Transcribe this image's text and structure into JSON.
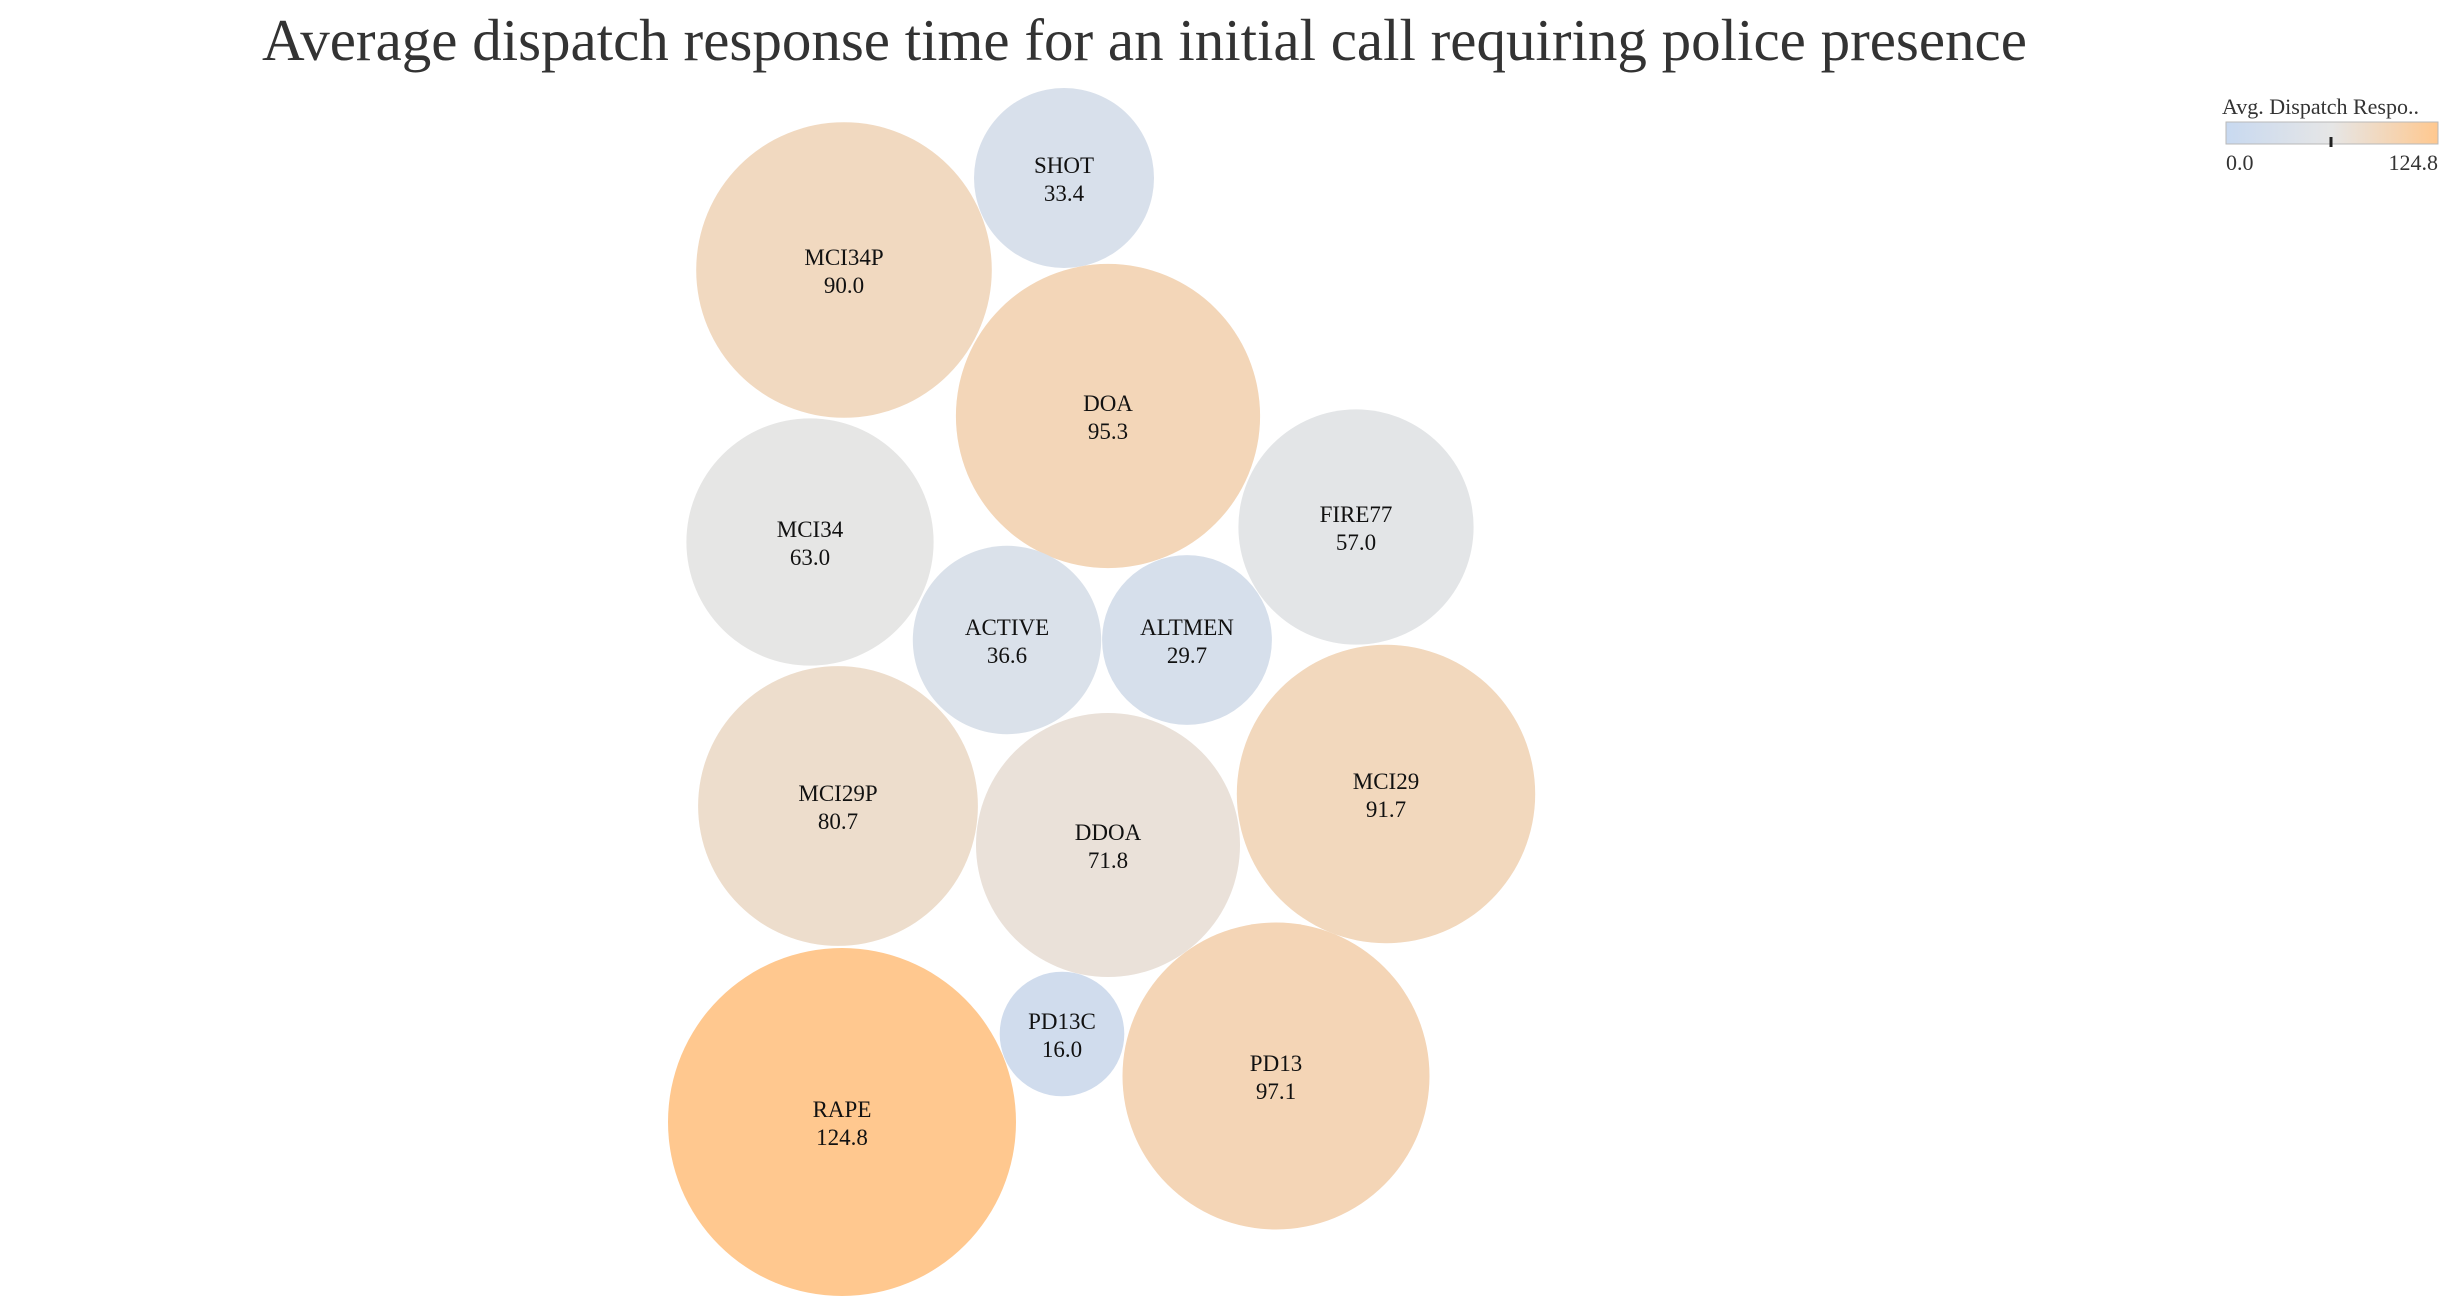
{
  "chart_data": {
    "type": "bubble",
    "title": "Average dispatch response time for an initial call requiring police presence",
    "items": [
      {
        "label": "SHOT",
        "value": 33.4,
        "display": "33.4"
      },
      {
        "label": "MCI34P",
        "value": 90.0,
        "display": "90.0"
      },
      {
        "label": "DOA",
        "value": 95.3,
        "display": "95.3"
      },
      {
        "label": "MCI34",
        "value": 63.0,
        "display": "63.0"
      },
      {
        "label": "FIRE77",
        "value": 57.0,
        "display": "57.0"
      },
      {
        "label": "ACTIVE",
        "value": 36.6,
        "display": "36.6"
      },
      {
        "label": "ALTMEN",
        "value": 29.7,
        "display": "29.7"
      },
      {
        "label": "MCI29P",
        "value": 80.7,
        "display": "80.7"
      },
      {
        "label": "DDOA",
        "value": 71.8,
        "display": "71.8"
      },
      {
        "label": "MCI29",
        "value": 91.7,
        "display": "91.7"
      },
      {
        "label": "PD13C",
        "value": 16.0,
        "display": "16.0"
      },
      {
        "label": "PD13",
        "value": 97.1,
        "display": "97.1"
      },
      {
        "label": "RAPE",
        "value": 124.8,
        "display": "124.8"
      }
    ],
    "legend": {
      "title": "Avg. Dispatch Respo..",
      "min_label": "0.0",
      "max_label": "124.8",
      "min": 0.0,
      "max": 124.8,
      "placement": "top-right"
    },
    "colors": {
      "low": "#c8d9f0",
      "mid": "#e6e6e6",
      "high": "#ffc88f"
    }
  }
}
